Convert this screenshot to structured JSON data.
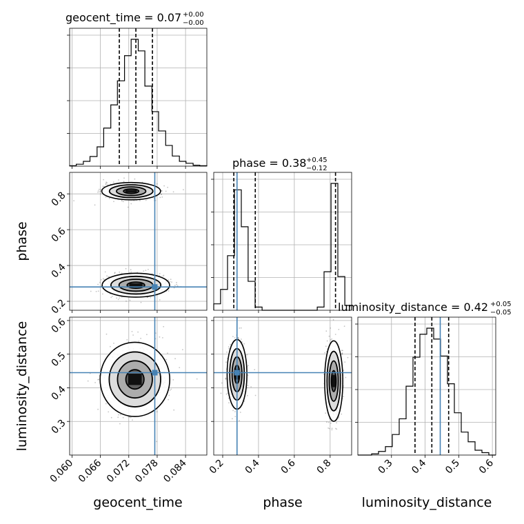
{
  "figure": {
    "panel_titles": {
      "geocent_time": {
        "base": "geocent_time = 0.07",
        "plus": "+0.00",
        "minus": "−0.00"
      },
      "phase": {
        "base": "phase = 0.38",
        "plus": "+0.45",
        "minus": "−0.12"
      },
      "luminosity_distance": {
        "base": "luminosity_distance = 0.42",
        "plus": "+0.05",
        "minus": "−0.05"
      }
    },
    "axis_labels": {
      "x": [
        "geocent_time",
        "phase",
        "luminosity_distance"
      ],
      "y": [
        "phase",
        "luminosity_distance"
      ]
    }
  },
  "colors": {
    "truth": "#4682b4",
    "grid": "#b0b0b0",
    "hist": "#000000",
    "points": "#555555"
  },
  "chart_data": {
    "type": "corner",
    "parameters": [
      "geocent_time",
      "phase",
      "luminosity_distance"
    ],
    "truths": {
      "geocent_time": 0.0775,
      "phase": 0.28,
      "luminosity_distance": 0.445
    },
    "ranges": {
      "geocent_time": [
        0.0595,
        0.0885
      ],
      "phase": [
        0.15,
        0.92
      ],
      "luminosity_distance": [
        0.2,
        0.61
      ]
    },
    "ticks": {
      "geocent_time": [
        {
          "v": 0.06,
          "label": "0.060"
        },
        {
          "v": 0.066,
          "label": "0.066"
        },
        {
          "v": 0.072,
          "label": "0.072"
        },
        {
          "v": 0.078,
          "label": "0.078"
        },
        {
          "v": 0.084,
          "label": "0.084"
        }
      ],
      "phase": [
        {
          "v": 0.2,
          "label": "0.2"
        },
        {
          "v": 0.4,
          "label": "0.4"
        },
        {
          "v": 0.6,
          "label": "0.6"
        },
        {
          "v": 0.8,
          "label": "0.8"
        }
      ],
      "luminosity_distance": [
        {
          "v": 0.3,
          "label": "0.3"
        },
        {
          "v": 0.4,
          "label": "0.4"
        },
        {
          "v": 0.5,
          "label": "0.5"
        },
        {
          "v": 0.6,
          "label": "0.6"
        }
      ]
    },
    "grid": true,
    "quantiles": {
      "geocent_time": [
        0.07,
        0.0735,
        0.077
      ],
      "phase": [
        0.262,
        0.382,
        0.83
      ],
      "luminosity_distance": [
        0.37,
        0.42,
        0.47
      ]
    },
    "histograms_1d": {
      "geocent_time": {
        "edges": [
          0.0595,
          0.0609,
          0.0624,
          0.0638,
          0.0653,
          0.0667,
          0.0682,
          0.0696,
          0.0711,
          0.0725,
          0.074,
          0.0754,
          0.0769,
          0.0783,
          0.0798,
          0.0812,
          0.0827,
          0.0841,
          0.0856,
          0.087,
          0.0885
        ],
        "counts": [
          1,
          4,
          10,
          20,
          40,
          79,
          127,
          177,
          229,
          263,
          239,
          166,
          113,
          73,
          43,
          21,
          10,
          6,
          2,
          1
        ]
      },
      "phase": {
        "edges": [
          0.15,
          0.188,
          0.227,
          0.266,
          0.304,
          0.342,
          0.381,
          0.42,
          0.458,
          0.496,
          0.535,
          0.574,
          0.612,
          0.65,
          0.689,
          0.728,
          0.766,
          0.805,
          0.843,
          0.882,
          0.92
        ],
        "counts": [
          4,
          13,
          34,
          75,
          52,
          18,
          2,
          0,
          0,
          0,
          0,
          0,
          0,
          0,
          0,
          2,
          24,
          79,
          21,
          3
        ]
      },
      "luminosity_distance": {
        "edges": [
          0.2,
          0.2205,
          0.241,
          0.2615,
          0.282,
          0.3025,
          0.323,
          0.3435,
          0.364,
          0.3845,
          0.405,
          0.4255,
          0.446,
          0.4665,
          0.487,
          0.5075,
          0.528,
          0.5485,
          0.569,
          0.5895,
          0.61
        ],
        "counts": [
          0,
          0,
          1,
          3,
          7,
          17,
          30,
          57,
          81,
          100,
          105,
          96,
          82,
          59,
          35,
          19,
          11,
          4,
          2,
          0
        ]
      }
    },
    "posterior_2d": {
      "phase_vs_geocent_time": {
        "modes": [
          {
            "x": 0.0725,
            "y": 0.815,
            "sx": 0.0027,
            "sy": 0.021
          },
          {
            "x": 0.0735,
            "y": 0.29,
            "sx": 0.0031,
            "sy": 0.029
          }
        ]
      },
      "luminosity_distance_vs_geocent_time": {
        "modes": [
          {
            "x": 0.0733,
            "y": 0.425,
            "sx": 0.0032,
            "sy": 0.048
          }
        ]
      },
      "luminosity_distance_vs_phase": {
        "modes": [
          {
            "x": 0.28,
            "y": 0.44,
            "sx": 0.024,
            "sy": 0.045
          },
          {
            "x": 0.82,
            "y": 0.42,
            "sx": 0.022,
            "sy": 0.052
          }
        ]
      }
    }
  }
}
